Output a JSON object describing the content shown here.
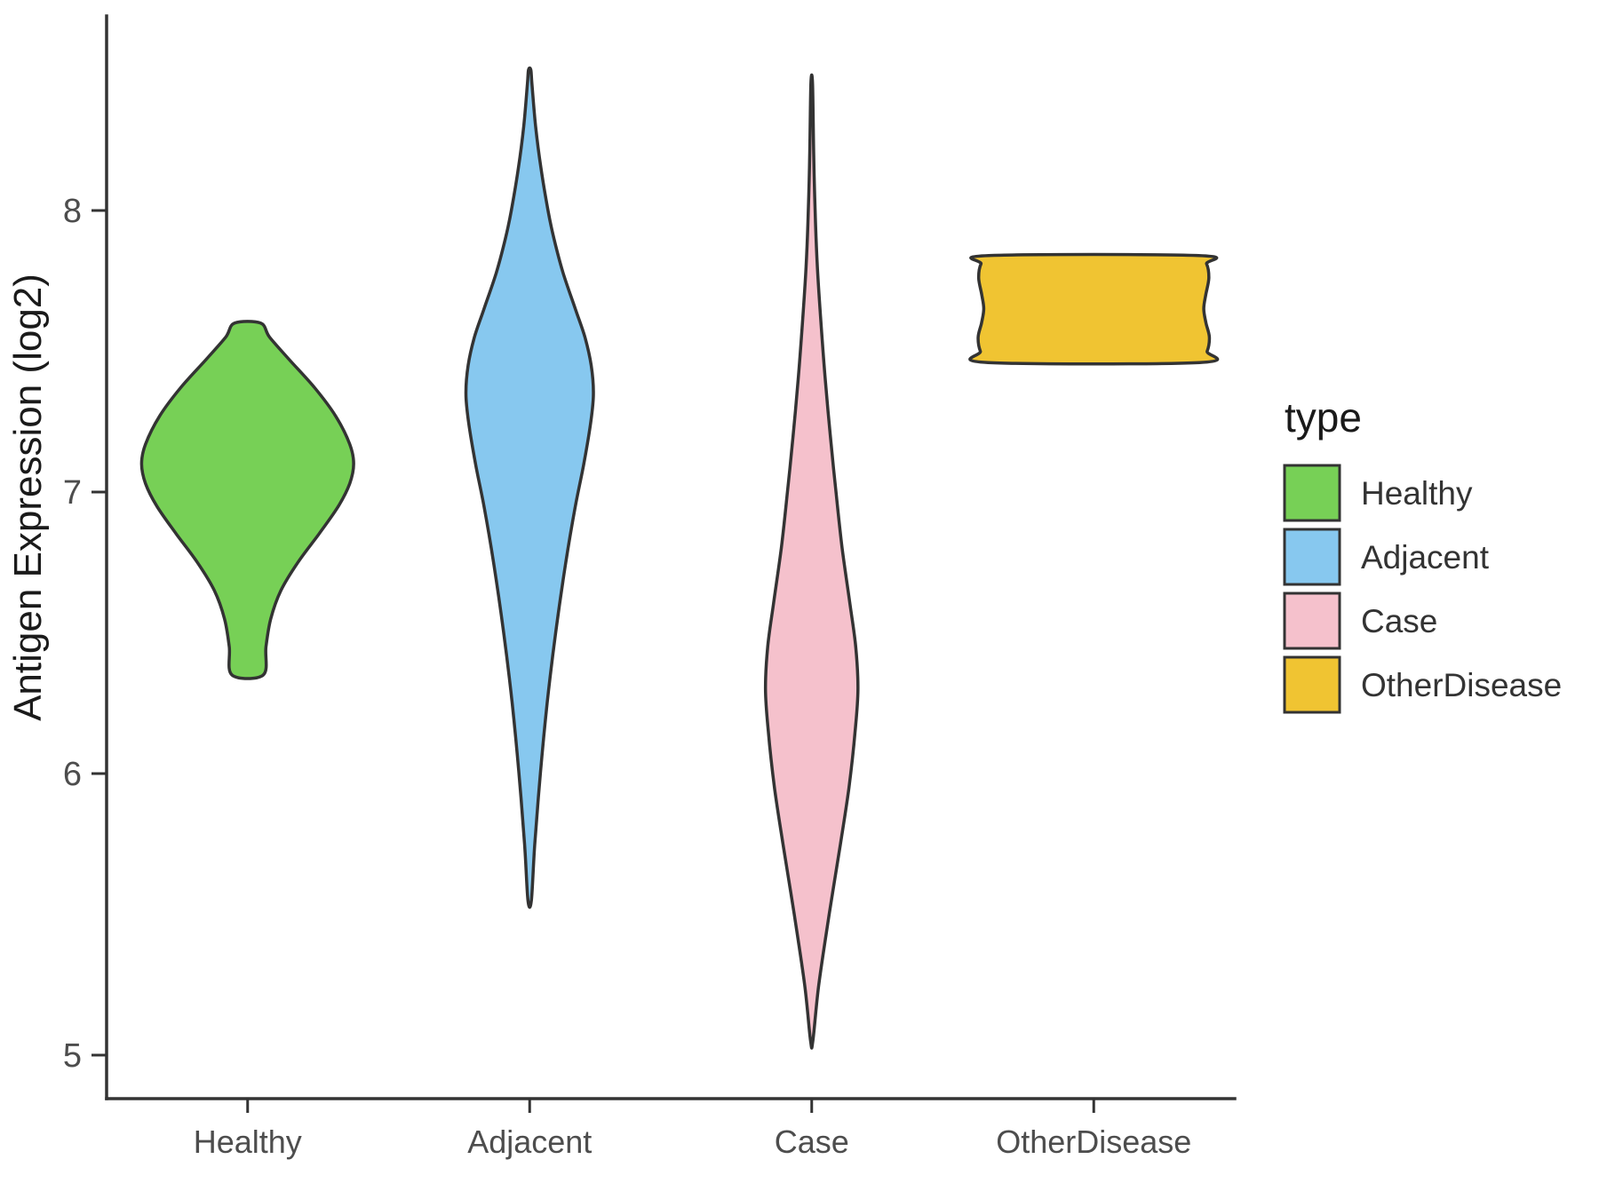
{
  "figure": {
    "background": "#FFFFFF"
  },
  "chart_data": {
    "type": "violin",
    "title": "",
    "xlabel": "",
    "ylabel": "Antigen Expression (log2)",
    "categories": [
      "Healthy",
      "Adjacent",
      "Case",
      "OtherDisease"
    ],
    "y_ticks": [
      5,
      6,
      7,
      8
    ],
    "ylim": [
      4.9,
      8.6
    ],
    "grid": "off",
    "axis_color": "#333333",
    "tick_label_color": "#4d4d4d",
    "legend": {
      "title": "type",
      "position": "right"
    },
    "series": [
      {
        "name": "Healthy",
        "color": "#77D056",
        "y_min": 6.35,
        "y_max": 7.6,
        "peak_y": 7.1,
        "truncated_ends": true,
        "profile": [
          [
            6.35,
            0.055
          ],
          [
            6.45,
            0.065
          ],
          [
            6.55,
            0.082
          ],
          [
            6.65,
            0.118
          ],
          [
            6.75,
            0.178
          ],
          [
            6.85,
            0.252
          ],
          [
            6.95,
            0.322
          ],
          [
            7.03,
            0.362
          ],
          [
            7.1,
            0.376
          ],
          [
            7.17,
            0.362
          ],
          [
            7.27,
            0.312
          ],
          [
            7.37,
            0.238
          ],
          [
            7.47,
            0.148
          ],
          [
            7.55,
            0.078
          ],
          [
            7.6,
            0.046
          ]
        ]
      },
      {
        "name": "Adjacent",
        "color": "#87C8EF",
        "y_min": 5.55,
        "y_max": 8.5,
        "peak_y": 7.35,
        "truncated_ends": false,
        "profile": [
          [
            5.55,
            0.006
          ],
          [
            5.75,
            0.018
          ],
          [
            6.0,
            0.038
          ],
          [
            6.25,
            0.062
          ],
          [
            6.5,
            0.092
          ],
          [
            6.75,
            0.128
          ],
          [
            6.95,
            0.162
          ],
          [
            7.1,
            0.192
          ],
          [
            7.25,
            0.217
          ],
          [
            7.35,
            0.226
          ],
          [
            7.45,
            0.218
          ],
          [
            7.55,
            0.196
          ],
          [
            7.65,
            0.162
          ],
          [
            7.78,
            0.118
          ],
          [
            7.9,
            0.086
          ],
          [
            8.0,
            0.065
          ],
          [
            8.15,
            0.04
          ],
          [
            8.3,
            0.021
          ],
          [
            8.45,
            0.008
          ],
          [
            8.5,
            0.004
          ]
        ]
      },
      {
        "name": "Case",
        "color": "#F5C1CC",
        "y_min": 5.05,
        "y_max": 8.45,
        "peak_y": 6.3,
        "truncated_ends": false,
        "profile": [
          [
            5.05,
            0.004
          ],
          [
            5.25,
            0.025
          ],
          [
            5.5,
            0.062
          ],
          [
            5.75,
            0.102
          ],
          [
            5.95,
            0.132
          ],
          [
            6.15,
            0.154
          ],
          [
            6.3,
            0.164
          ],
          [
            6.45,
            0.156
          ],
          [
            6.6,
            0.136
          ],
          [
            6.8,
            0.108
          ],
          [
            7.0,
            0.086
          ],
          [
            7.2,
            0.066
          ],
          [
            7.4,
            0.048
          ],
          [
            7.6,
            0.033
          ],
          [
            7.8,
            0.02
          ],
          [
            8.0,
            0.012
          ],
          [
            8.2,
            0.007
          ],
          [
            8.45,
            0.003
          ]
        ]
      },
      {
        "name": "OtherDisease",
        "color": "#F0C432",
        "y_min": 7.46,
        "y_max": 7.84,
        "peak_y": 7.55,
        "truncated_ends": true,
        "profile": [
          [
            7.46,
            0.375
          ],
          [
            7.5,
            0.402
          ],
          [
            7.55,
            0.41
          ],
          [
            7.6,
            0.398
          ],
          [
            7.65,
            0.39
          ],
          [
            7.7,
            0.397
          ],
          [
            7.76,
            0.408
          ],
          [
            7.81,
            0.4
          ],
          [
            7.84,
            0.372
          ]
        ]
      }
    ]
  }
}
